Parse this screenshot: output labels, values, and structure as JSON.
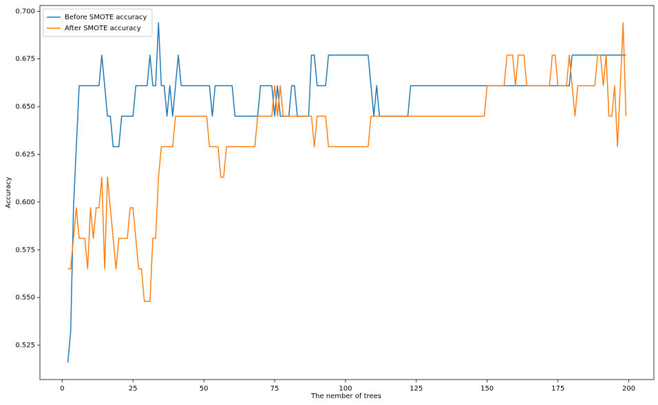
{
  "chart_data": {
    "type": "line",
    "xlabel": "The nember of trees",
    "ylabel": "Accuracy",
    "x": [
      2,
      3,
      4,
      5,
      6,
      7,
      8,
      9,
      10,
      11,
      12,
      13,
      14,
      15,
      16,
      17,
      18,
      19,
      20,
      21,
      22,
      23,
      24,
      25,
      26,
      27,
      28,
      29,
      30,
      31,
      32,
      33,
      34,
      35,
      36,
      37,
      38,
      39,
      40,
      41,
      42,
      43,
      44,
      45,
      46,
      47,
      48,
      49,
      50,
      51,
      52,
      53,
      54,
      55,
      56,
      57,
      58,
      59,
      60,
      61,
      62,
      63,
      64,
      65,
      66,
      67,
      68,
      69,
      70,
      71,
      72,
      73,
      74,
      75,
      76,
      77,
      78,
      79,
      80,
      81,
      82,
      83,
      84,
      85,
      86,
      87,
      88,
      89,
      90,
      91,
      92,
      93,
      94,
      95,
      96,
      97,
      98,
      99,
      100,
      101,
      102,
      103,
      104,
      105,
      106,
      107,
      108,
      109,
      110,
      111,
      112,
      113,
      114,
      115,
      116,
      117,
      118,
      119,
      120,
      121,
      122,
      123,
      124,
      125,
      126,
      127,
      128,
      129,
      130,
      131,
      132,
      133,
      134,
      135,
      136,
      137,
      138,
      139,
      140,
      141,
      142,
      143,
      144,
      145,
      146,
      147,
      148,
      149,
      150,
      151,
      152,
      153,
      154,
      155,
      156,
      157,
      158,
      159,
      160,
      161,
      162,
      163,
      164,
      165,
      166,
      167,
      168,
      169,
      170,
      171,
      172,
      173,
      174,
      175,
      176,
      177,
      178,
      179,
      180,
      181,
      182,
      183,
      184,
      185,
      186,
      187,
      188,
      189,
      190,
      191,
      192,
      193,
      194,
      195,
      196,
      197,
      198,
      199
    ],
    "series": [
      {
        "name": "Before SMOTE accuracy",
        "color": "#1f77b4",
        "values": [
          0.516,
          0.532,
          0.597,
          0.629,
          0.661,
          0.661,
          0.661,
          0.661,
          0.661,
          0.661,
          0.661,
          0.661,
          0.677,
          0.661,
          0.645,
          0.645,
          0.629,
          0.629,
          0.629,
          0.645,
          0.645,
          0.645,
          0.645,
          0.645,
          0.661,
          0.661,
          0.661,
          0.661,
          0.661,
          0.677,
          0.661,
          0.661,
          0.694,
          0.661,
          0.661,
          0.645,
          0.661,
          0.645,
          0.661,
          0.677,
          0.661,
          0.661,
          0.661,
          0.661,
          0.661,
          0.661,
          0.661,
          0.661,
          0.661,
          0.661,
          0.661,
          0.645,
          0.661,
          0.661,
          0.661,
          0.661,
          0.661,
          0.661,
          0.661,
          0.645,
          0.645,
          0.645,
          0.645,
          0.645,
          0.645,
          0.645,
          0.645,
          0.645,
          0.661,
          0.661,
          0.661,
          0.661,
          0.661,
          0.645,
          0.661,
          0.645,
          0.645,
          0.645,
          0.645,
          0.661,
          0.661,
          0.645,
          0.645,
          0.645,
          0.645,
          0.645,
          0.677,
          0.677,
          0.661,
          0.661,
          0.661,
          0.661,
          0.677,
          0.677,
          0.677,
          0.677,
          0.677,
          0.677,
          0.677,
          0.677,
          0.677,
          0.677,
          0.677,
          0.677,
          0.677,
          0.677,
          0.677,
          0.661,
          0.645,
          0.661,
          0.645,
          0.645,
          0.645,
          0.645,
          0.645,
          0.645,
          0.645,
          0.645,
          0.645,
          0.645,
          0.645,
          0.661,
          0.661,
          0.661,
          0.661,
          0.661,
          0.661,
          0.661,
          0.661,
          0.661,
          0.661,
          0.661,
          0.661,
          0.661,
          0.661,
          0.661,
          0.661,
          0.661,
          0.661,
          0.661,
          0.661,
          0.661,
          0.661,
          0.661,
          0.661,
          0.661,
          0.661,
          0.661,
          0.661,
          0.661,
          0.661,
          0.661,
          0.661,
          0.661,
          0.661,
          0.661,
          0.661,
          0.661,
          0.661,
          0.661,
          0.661,
          0.661,
          0.661,
          0.661,
          0.661,
          0.661,
          0.661,
          0.661,
          0.661,
          0.661,
          0.661,
          0.661,
          0.661,
          0.661,
          0.661,
          0.661,
          0.661,
          0.661,
          0.677,
          0.677,
          0.677,
          0.677,
          0.677,
          0.677,
          0.677,
          0.677,
          0.677,
          0.677,
          0.677,
          0.677,
          0.677,
          0.677,
          0.677,
          0.677,
          0.677,
          0.677,
          0.677,
          0.677
        ]
      },
      {
        "name": "After SMOTE accuracy",
        "color": "#ff7f0e",
        "values": [
          0.565,
          0.565,
          0.581,
          0.597,
          0.581,
          0.581,
          0.581,
          0.565,
          0.597,
          0.581,
          0.597,
          0.597,
          0.613,
          0.565,
          0.613,
          0.597,
          0.581,
          0.565,
          0.581,
          0.581,
          0.581,
          0.581,
          0.597,
          0.597,
          0.581,
          0.565,
          0.565,
          0.548,
          0.548,
          0.548,
          0.581,
          0.581,
          0.613,
          0.629,
          0.629,
          0.629,
          0.629,
          0.629,
          0.645,
          0.645,
          0.645,
          0.645,
          0.645,
          0.645,
          0.645,
          0.645,
          0.645,
          0.645,
          0.645,
          0.645,
          0.629,
          0.629,
          0.629,
          0.629,
          0.613,
          0.613,
          0.629,
          0.629,
          0.629,
          0.629,
          0.629,
          0.629,
          0.629,
          0.629,
          0.629,
          0.629,
          0.629,
          0.645,
          0.645,
          0.645,
          0.645,
          0.645,
          0.645,
          0.661,
          0.645,
          0.661,
          0.645,
          0.645,
          0.645,
          0.645,
          0.645,
          0.645,
          0.645,
          0.645,
          0.645,
          0.645,
          0.645,
          0.629,
          0.645,
          0.645,
          0.645,
          0.645,
          0.629,
          0.629,
          0.629,
          0.629,
          0.629,
          0.629,
          0.629,
          0.629,
          0.629,
          0.629,
          0.629,
          0.629,
          0.629,
          0.629,
          0.629,
          0.645,
          0.645,
          0.645,
          0.645,
          0.645,
          0.645,
          0.645,
          0.645,
          0.645,
          0.645,
          0.645,
          0.645,
          0.645,
          0.645,
          0.645,
          0.645,
          0.645,
          0.645,
          0.645,
          0.645,
          0.645,
          0.645,
          0.645,
          0.645,
          0.645,
          0.645,
          0.645,
          0.645,
          0.645,
          0.645,
          0.645,
          0.645,
          0.645,
          0.645,
          0.645,
          0.645,
          0.645,
          0.645,
          0.645,
          0.645,
          0.645,
          0.661,
          0.661,
          0.661,
          0.661,
          0.661,
          0.661,
          0.661,
          0.677,
          0.677,
          0.677,
          0.661,
          0.677,
          0.677,
          0.677,
          0.661,
          0.661,
          0.661,
          0.661,
          0.661,
          0.661,
          0.661,
          0.661,
          0.661,
          0.677,
          0.677,
          0.661,
          0.661,
          0.661,
          0.661,
          0.677,
          0.661,
          0.645,
          0.661,
          0.661,
          0.661,
          0.661,
          0.661,
          0.661,
          0.661,
          0.677,
          0.677,
          0.661,
          0.677,
          0.645,
          0.645,
          0.661,
          0.629,
          0.661,
          0.694,
          0.645
        ]
      }
    ],
    "xlim": [
      -7.85,
      208.85
    ],
    "ylim": [
      0.507,
      0.703
    ],
    "xticks": [
      0,
      25,
      50,
      75,
      100,
      125,
      150,
      175,
      200
    ],
    "yticks": [
      0.525,
      {
        "value": 0.55,
        "label": "0.550"
      },
      0.575,
      {
        "value": 0.6,
        "label": "0.600"
      },
      0.625,
      {
        "value": 0.65,
        "label": "0.650"
      },
      0.675,
      {
        "value": 0.7,
        "label": "0.700"
      }
    ],
    "legend": "upper-left",
    "grid": false
  }
}
